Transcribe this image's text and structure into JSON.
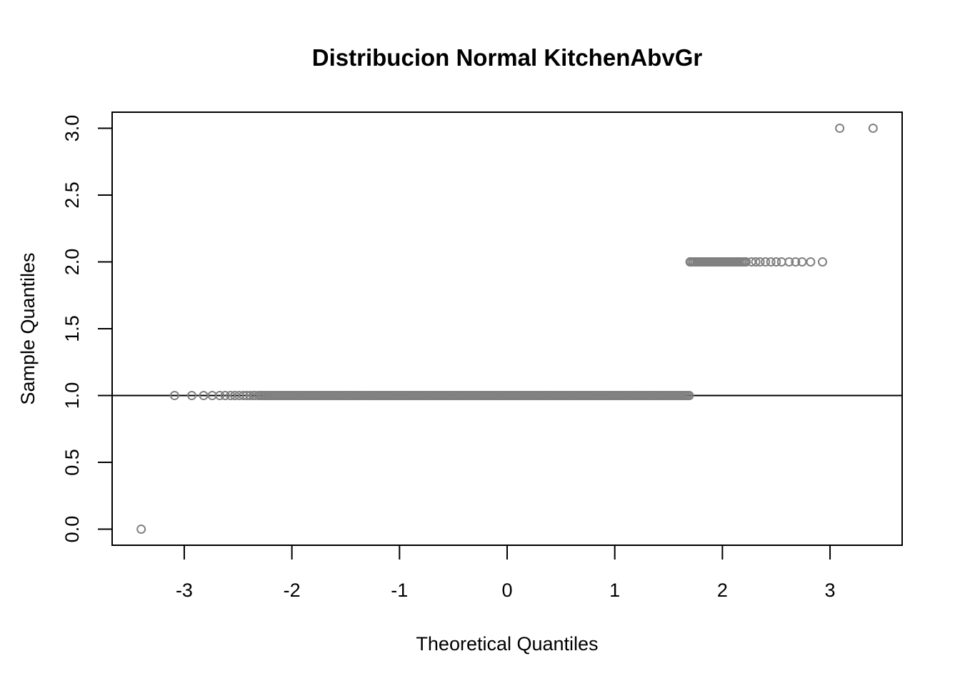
{
  "chart_data": {
    "type": "scatter",
    "title": "Distribucion Normal KitchenAbvGr",
    "xlabel": "Theoretical Quantiles",
    "ylabel": "Sample Quantiles",
    "xlim": [
      -3.67,
      3.67
    ],
    "ylim": [
      -0.12,
      3.12
    ],
    "xticks": [
      -3,
      -2,
      -1,
      0,
      1,
      2,
      3
    ],
    "xtick_labels": [
      "-3",
      "-2",
      "-1",
      "0",
      "1",
      "2",
      "3"
    ],
    "yticks": [
      0.0,
      0.5,
      1.0,
      1.5,
      2.0,
      2.5,
      3.0
    ],
    "ytick_labels": [
      "0.0",
      "0.5",
      "1.0",
      "1.5",
      "2.0",
      "2.5",
      "3.0"
    ],
    "grid": false,
    "point_color": "#808080",
    "line_color": "#000000",
    "reference_line": {
      "slope": 0,
      "intercept": 1.0
    },
    "series": [
      {
        "groups": [
          {
            "y": 0.0,
            "x": [
              -3.4
            ]
          },
          {
            "y": 1.0,
            "x": [
              -3.09,
              -2.93,
              -2.82,
              -2.74,
              -2.67,
              -2.62,
              -2.57,
              -2.53,
              -2.49,
              -2.45,
              -2.42,
              -2.39,
              -2.36,
              -2.34,
              -2.31,
              -2.29
            ],
            "dense_from": -2.29,
            "dense_to": 1.7
          },
          {
            "y": 2.0,
            "x": [
              1.7,
              2.22,
              2.27,
              2.31,
              2.35,
              2.4,
              2.45,
              2.5,
              2.55,
              2.62,
              2.68,
              2.74,
              2.82,
              2.93
            ],
            "dense_from": 1.7,
            "dense_to": 2.22
          },
          {
            "y": 3.0,
            "x": [
              3.09,
              3.4
            ]
          }
        ]
      }
    ]
  }
}
